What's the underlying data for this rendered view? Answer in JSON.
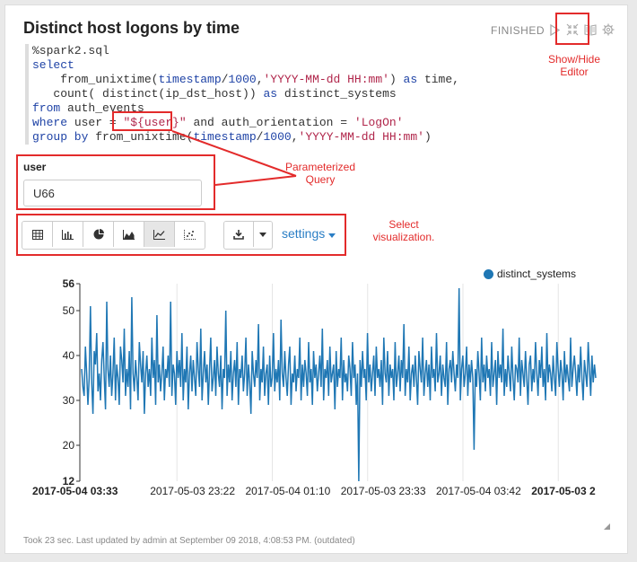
{
  "paragraph": {
    "title": "Distinct host logons by time",
    "status": "FINISHED",
    "footer": "Took 23 sec. Last updated by admin at September 09 2018, 4:08:53 PM. (outdated)"
  },
  "code": {
    "l1": "%spark2.sql",
    "l2": "select",
    "l3a": "    from_unixtime(",
    "l3b": "timestamp",
    "l3c": "/",
    "l3d": "1000",
    "l3e": ",",
    "l3f": "'YYYY-MM-dd HH:mm'",
    "l3g": ") ",
    "l3h": "as",
    "l3i": " time,",
    "l4a": "   count( distinct(ip_dst_host)) ",
    "l4b": "as",
    "l4c": " distinct_systems",
    "l5a": "from",
    "l5b": " auth_events",
    "l6a": "where",
    "l6b": " user = ",
    "l6c": "\"${user}\"",
    "l6d": " and auth_orientation = ",
    "l6e": "'LogOn'",
    "l7a": "group by",
    "l7b": " from_unixtime(",
    "l7c": "timestamp",
    "l7d": "/",
    "l7e": "1000",
    "l7f": ",",
    "l7g": "'YYYY-MM-dd HH:mm'",
    "l7h": ")"
  },
  "form": {
    "label": "user",
    "value": "U66"
  },
  "toolbar": {
    "settings_label": "settings"
  },
  "annotations": {
    "editor_1": "Show/Hide",
    "editor_2": "Editor",
    "param_1": "Parameterized",
    "param_2": "Query",
    "vis_1": "Select",
    "vis_2": "visualization."
  },
  "colors": {
    "series": "#1f77b4",
    "annotation": "#e32b2b",
    "link": "#2a7ec5"
  },
  "chart_data": {
    "type": "line",
    "series_name": "distinct_systems",
    "legend_position": "top-right",
    "grid": true,
    "ylim": [
      12,
      56
    ],
    "yticks": [
      12,
      20,
      30,
      40,
      50,
      56
    ],
    "xticks": [
      "2017-05-04 03:33",
      "2017-05-03 23:22",
      "2017-05-04 01:10",
      "2017-05-03 23:33",
      "2017-05-04 03:42",
      "2017-05-03 2"
    ],
    "values": [
      37,
      33,
      31,
      42,
      36,
      29,
      35,
      51,
      34,
      27,
      41,
      38,
      45,
      32,
      36,
      30,
      39,
      43,
      35,
      28,
      52,
      37,
      33,
      40,
      31,
      36,
      44,
      30,
      38,
      35,
      29,
      42,
      39,
      34,
      46,
      31,
      37,
      33,
      41,
      28,
      53,
      36,
      32,
      39,
      35,
      30,
      43,
      38,
      34,
      41,
      27,
      36,
      40,
      33,
      37,
      31,
      44,
      35,
      39,
      29,
      49,
      34,
      38,
      32,
      36,
      42,
      30,
      37,
      35,
      40,
      33,
      52,
      31,
      38,
      36,
      29,
      41,
      35,
      39,
      33,
      45,
      30,
      37,
      34,
      42,
      28,
      36,
      40,
      32,
      39,
      35,
      31,
      43,
      37,
      33,
      46,
      30,
      36,
      41,
      34,
      38,
      29,
      37,
      44,
      32,
      35,
      39,
      31,
      42,
      36,
      33,
      40,
      28,
      37,
      35,
      50,
      31,
      38,
      34,
      41,
      30,
      36,
      39,
      33,
      43,
      29,
      37,
      35,
      40,
      32,
      36,
      44,
      31,
      38,
      34,
      27,
      41,
      36,
      33,
      39,
      35,
      47,
      30,
      37,
      34,
      42,
      31,
      36,
      38,
      29,
      40,
      33,
      35,
      45,
      32,
      37,
      34,
      39,
      30,
      48,
      36,
      33,
      41,
      35,
      31,
      38,
      42,
      29,
      36,
      34,
      40,
      32,
      37,
      35,
      44,
      30,
      38,
      33,
      39,
      36,
      31,
      43,
      34,
      37,
      29,
      41,
      35,
      38,
      32,
      36,
      40,
      33,
      46,
      30,
      37,
      35,
      39,
      31,
      42,
      34,
      36,
      38,
      28,
      41,
      33,
      37,
      35,
      44,
      30,
      39,
      34,
      36,
      32,
      40,
      37,
      31,
      43,
      35,
      38,
      29,
      36,
      12,
      39,
      33,
      41,
      35,
      37,
      30,
      45,
      34,
      38,
      32,
      36,
      40,
      31,
      42,
      35,
      37,
      33,
      39,
      29,
      44,
      36,
      34,
      41,
      31,
      38,
      35,
      37,
      30,
      43,
      33,
      36,
      40,
      32,
      39,
      35,
      47,
      31,
      37,
      34,
      42,
      30,
      36,
      38,
      33,
      40,
      35,
      29,
      41,
      37,
      34,
      44,
      31,
      36,
      39,
      33,
      38,
      30,
      42,
      35,
      37,
      32,
      45,
      34,
      36,
      40,
      31,
      38,
      35,
      33,
      43,
      29,
      37,
      39,
      34,
      41,
      36,
      32,
      38,
      35,
      55,
      30,
      37,
      40,
      33,
      36,
      42,
      31,
      38,
      34,
      39,
      35,
      19,
      37,
      33,
      41,
      36,
      30,
      44,
      34,
      38,
      32,
      40,
      35,
      37,
      31,
      43,
      33,
      36,
      39,
      29,
      41,
      35,
      38,
      34,
      46,
      31,
      37,
      33,
      40,
      36,
      32,
      42,
      35,
      30,
      38,
      37,
      34,
      44,
      31,
      39,
      36,
      33,
      41,
      35,
      29,
      38,
      40,
      32,
      37,
      34,
      43,
      36,
      31,
      39,
      35,
      42,
      33,
      37,
      30,
      45,
      34,
      38,
      36,
      32,
      40,
      35,
      31,
      43,
      37,
      33,
      39,
      36,
      30,
      41,
      34,
      38,
      35,
      32,
      44,
      33,
      37,
      40,
      36,
      31,
      38,
      34,
      42,
      35,
      30,
      39,
      36,
      33,
      43,
      37,
      31,
      40,
      34,
      38,
      35
    ]
  }
}
